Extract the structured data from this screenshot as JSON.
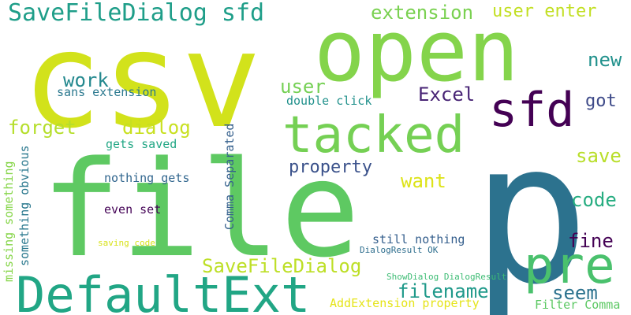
{
  "word_cloud": {
    "words": [
      {
        "text": "csv",
        "color": "#d2e21b"
      },
      {
        "text": "open",
        "color": "#84d44b"
      },
      {
        "text": "p",
        "color": "#2c728e"
      },
      {
        "text": "file",
        "color": "#5ec962"
      },
      {
        "text": "tacked",
        "color": "#75d054"
      },
      {
        "text": "sfd",
        "color": "#440154"
      },
      {
        "text": "DefaultExt",
        "color": "#21a685"
      },
      {
        "text": "pre",
        "color": "#4ac16d"
      },
      {
        "text": "SaveFileDialog sfd",
        "color": "#1f9e89"
      },
      {
        "text": "extension",
        "color": "#7ad151"
      },
      {
        "text": "user enter",
        "color": "#c2df23"
      },
      {
        "text": "new",
        "color": "#21918c"
      },
      {
        "text": "work",
        "color": "#23888e"
      },
      {
        "text": "user",
        "color": "#75d054"
      },
      {
        "text": "Excel",
        "color": "#482475"
      },
      {
        "text": "sans extension",
        "color": "#2a788e"
      },
      {
        "text": "got",
        "color": "#3e4a89"
      },
      {
        "text": "double click",
        "color": "#21918c"
      },
      {
        "text": "forget",
        "color": "#b5de2b"
      },
      {
        "text": "dialog",
        "color": "#c8e020"
      },
      {
        "text": "SaveFileDialog",
        "color": "#bddf26"
      },
      {
        "text": "Comma Separated",
        "color": "#35608d"
      },
      {
        "text": "gets saved",
        "color": "#22a785"
      },
      {
        "text": "save",
        "color": "#b8de29"
      },
      {
        "text": "missing something",
        "color": "#86d549"
      },
      {
        "text": "something obvious",
        "color": "#2a788e"
      },
      {
        "text": "property",
        "color": "#3b528b"
      },
      {
        "text": "want",
        "color": "#dde318"
      },
      {
        "text": "code",
        "color": "#27ad81"
      },
      {
        "text": "nothing gets",
        "color": "#31668e"
      },
      {
        "text": "even set",
        "color": "#450457"
      },
      {
        "text": "fine",
        "color": "#440154"
      },
      {
        "text": "still nothing",
        "color": "#355f8d"
      },
      {
        "text": "saving code",
        "color": "#d8e219"
      },
      {
        "text": "DialogResult OK",
        "color": "#2e6e8e"
      },
      {
        "text": "filename",
        "color": "#1f998a"
      },
      {
        "text": "ShowDialog DialogResult",
        "color": "#3dbc74"
      },
      {
        "text": "seem",
        "color": "#2c728e"
      },
      {
        "text": "AddExtension property",
        "color": "#e5e419"
      },
      {
        "text": "Filter Comma",
        "color": "#5cc863"
      }
    ]
  }
}
